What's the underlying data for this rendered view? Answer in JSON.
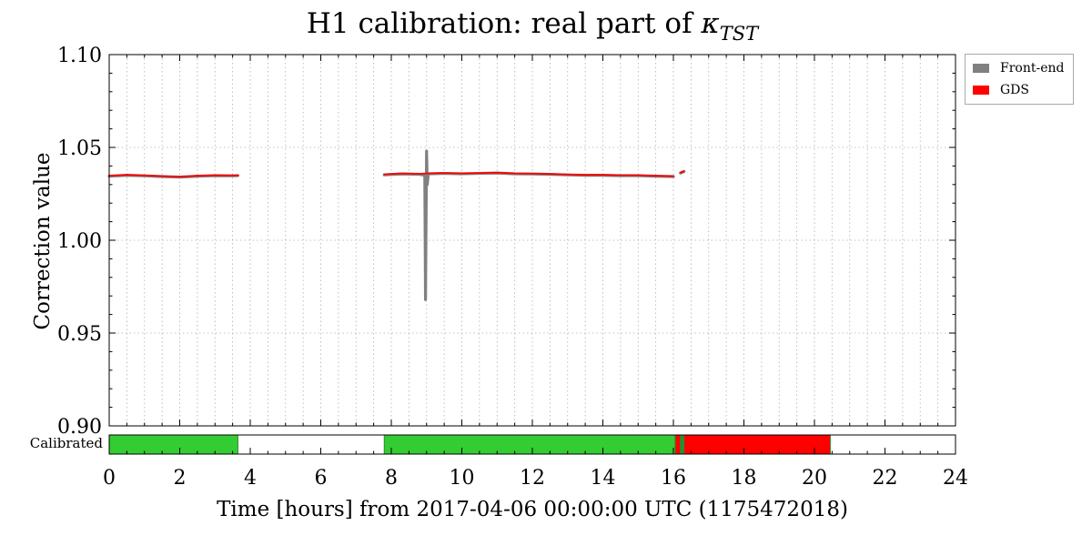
{
  "chart_data": {
    "type": "line",
    "title_main": "H1 calibration: real part of ",
    "title_symbol": "κ",
    "title_subscript": "TST",
    "xlabel": "Time [hours] from 2017-04-06 00:00:00 UTC (1175472018)",
    "ylabel": "Correction value",
    "xlim": [
      0,
      24
    ],
    "ylim": [
      0.9,
      1.1
    ],
    "xticks": [
      0,
      2,
      4,
      6,
      8,
      10,
      12,
      14,
      16,
      18,
      20,
      22,
      24
    ],
    "yticks": [
      "0.90",
      "0.95",
      "1.00",
      "1.05",
      "1.10"
    ],
    "grid": true,
    "legend_position": "outside-top-right",
    "series": [
      {
        "name": "Front-end",
        "color": "#808080",
        "segments": [
          {
            "x": [
              0.0,
              0.5,
              1.0,
              1.5,
              2.0,
              2.5,
              3.0,
              3.5,
              3.65
            ],
            "y": [
              1.0345,
              1.035,
              1.0347,
              1.0343,
              1.034,
              1.0345,
              1.0348,
              1.0347,
              1.0348
            ]
          },
          {
            "x": [
              7.8,
              8.3,
              8.8,
              8.95,
              8.97,
              9.0,
              9.02,
              9.05,
              9.5,
              10.0,
              10.5,
              11.0,
              11.5,
              12.0,
              12.5,
              13.0,
              13.5,
              14.0,
              14.5,
              15.0,
              15.5,
              16.0
            ],
            "y": [
              1.0352,
              1.0357,
              1.0355,
              1.035,
              0.968,
              1.048,
              1.03,
              1.0358,
              1.036,
              1.0358,
              1.036,
              1.0362,
              1.0358,
              1.0357,
              1.0355,
              1.0352,
              1.035,
              1.035,
              1.0348,
              1.0348,
              1.0345,
              1.0343
            ]
          },
          {
            "x": [
              16.2,
              16.3
            ],
            "y": [
              1.0362,
              1.037
            ]
          }
        ]
      },
      {
        "name": "GDS",
        "color": "#ff0000",
        "segments": [
          {
            "x": [
              0.0,
              0.5,
              1.0,
              1.5,
              2.0,
              2.5,
              3.0,
              3.5,
              3.65
            ],
            "y": [
              1.0348,
              1.0352,
              1.0349,
              1.0345,
              1.0342,
              1.0347,
              1.035,
              1.0349,
              1.035
            ]
          },
          {
            "x": [
              7.8,
              8.3,
              8.8,
              9.0,
              9.5,
              10.0,
              10.5,
              11.0,
              11.5,
              12.0,
              12.5,
              13.0,
              13.5,
              14.0,
              14.5,
              15.0,
              15.5,
              16.0
            ],
            "y": [
              1.0355,
              1.036,
              1.0358,
              1.036,
              1.0362,
              1.036,
              1.0362,
              1.0364,
              1.036,
              1.0359,
              1.0357,
              1.0354,
              1.0352,
              1.0352,
              1.035,
              1.035,
              1.0347,
              1.0345
            ]
          },
          {
            "x": [
              16.2,
              16.3
            ],
            "y": [
              1.0364,
              1.0372
            ]
          }
        ]
      }
    ],
    "status_bar": {
      "label": "Calibrated",
      "segments": [
        {
          "start": 0.0,
          "end": 3.65,
          "state": "good"
        },
        {
          "start": 7.8,
          "end": 16.05,
          "state": "good"
        },
        {
          "start": 16.05,
          "end": 16.2,
          "state": "bad"
        },
        {
          "start": 16.2,
          "end": 16.3,
          "state": "edge"
        },
        {
          "start": 16.3,
          "end": 20.45,
          "state": "bad"
        }
      ],
      "colors": {
        "good": "#33cc33",
        "bad": "#ff0000",
        "edge": "#2e8b2e"
      }
    }
  }
}
